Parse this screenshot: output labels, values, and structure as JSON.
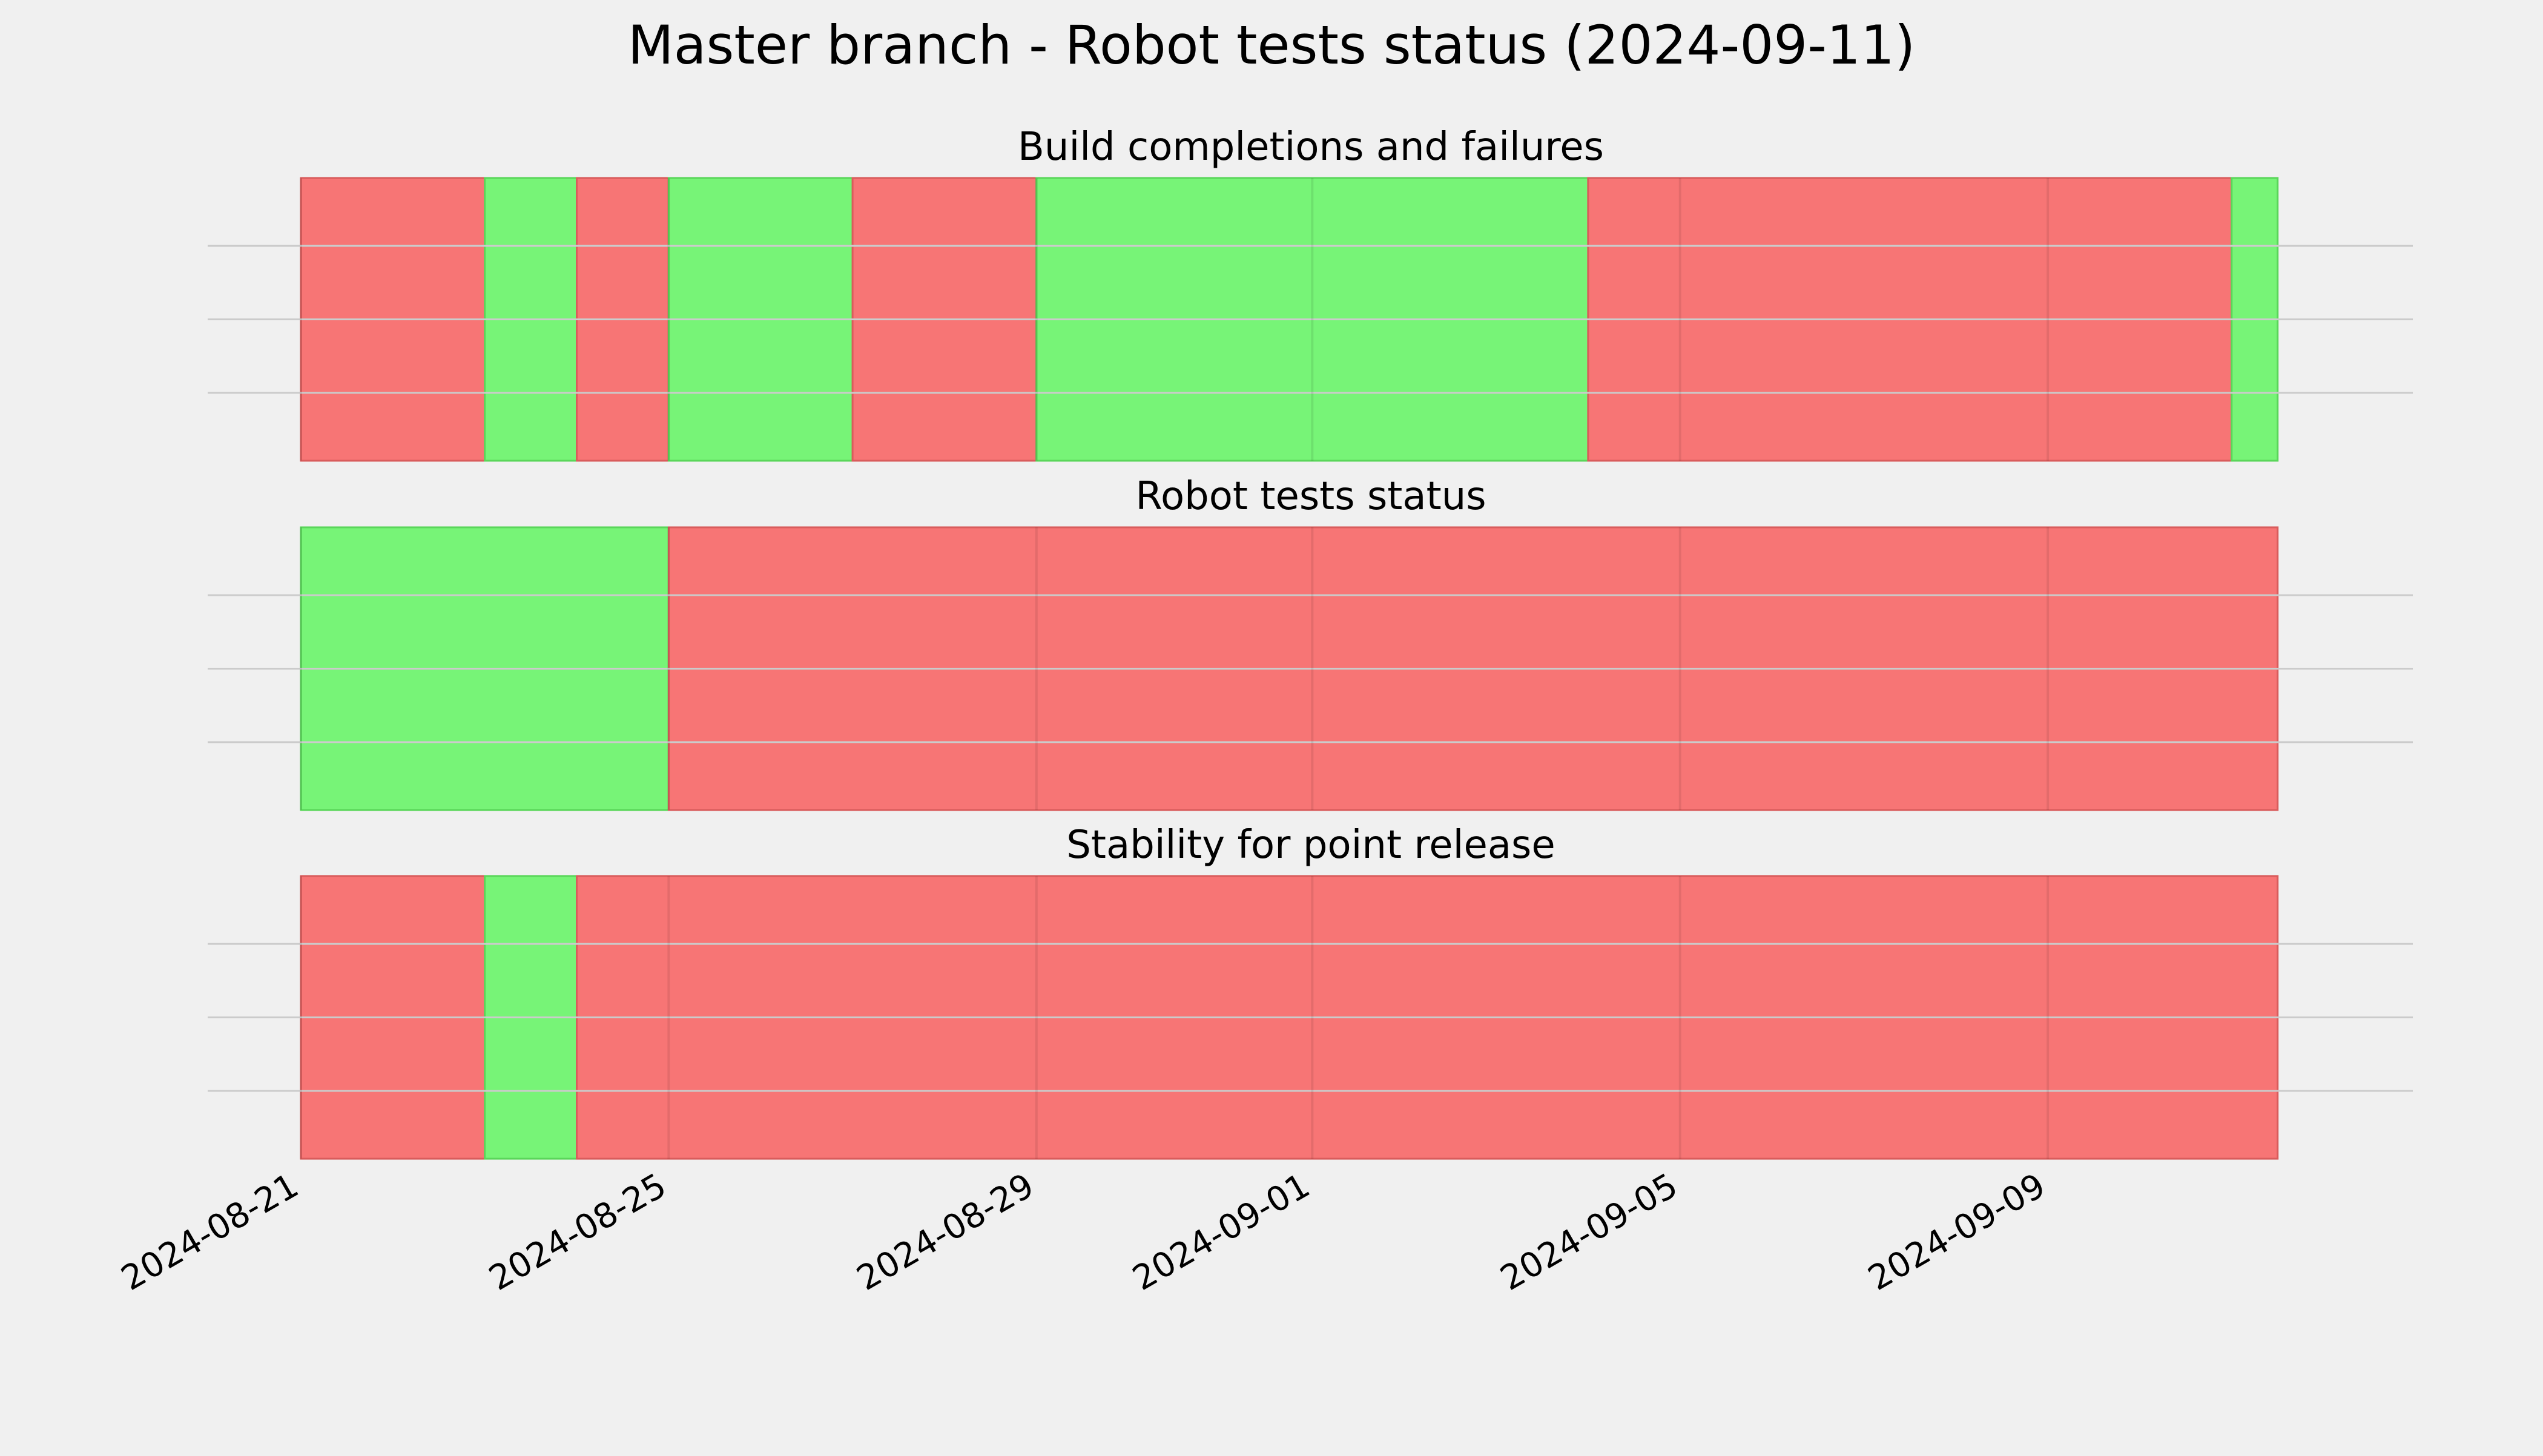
{
  "colors": {
    "background": "#f0f0f0",
    "pass": "#77f477",
    "fail": "#f77575",
    "gridline": "#cbcbcb"
  },
  "chart_data": {
    "type": "timeline",
    "title": "Master branch - Robot tests status (2024-09-11)",
    "x_axis": {
      "type": "date",
      "range": [
        "2024-08-21",
        "2024-09-11T22:00"
      ],
      "tick_labels": [
        "2024-08-21",
        "2024-08-25",
        "2024-08-29",
        "2024-09-01",
        "2024-09-05",
        "2024-09-09"
      ],
      "tick_rotation_deg": 30
    },
    "grid": true,
    "legend": "none",
    "panels": [
      {
        "title": "Build completions and failures",
        "segments": [
          {
            "start": "2024-08-21",
            "end": "2024-08-23",
            "status": "fail"
          },
          {
            "start": "2024-08-23",
            "end": "2024-08-24",
            "status": "pass"
          },
          {
            "start": "2024-08-24",
            "end": "2024-08-25",
            "status": "fail"
          },
          {
            "start": "2024-08-25",
            "end": "2024-08-27",
            "status": "pass"
          },
          {
            "start": "2024-08-27",
            "end": "2024-08-29",
            "status": "fail"
          },
          {
            "start": "2024-08-29",
            "end": "2024-09-04",
            "status": "pass"
          },
          {
            "start": "2024-09-04",
            "end": "2024-09-11",
            "status": "fail"
          },
          {
            "start": "2024-09-11",
            "end": "2024-09-11T12:00",
            "status": "pass"
          }
        ]
      },
      {
        "title": "Robot tests status",
        "segments": [
          {
            "start": "2024-08-21",
            "end": "2024-08-25",
            "status": "pass"
          },
          {
            "start": "2024-08-25",
            "end": "2024-09-11T12:00",
            "status": "fail"
          }
        ]
      },
      {
        "title": "Stability for point release",
        "segments": [
          {
            "start": "2024-08-21",
            "end": "2024-08-23",
            "status": "fail"
          },
          {
            "start": "2024-08-23",
            "end": "2024-08-24",
            "status": "pass"
          },
          {
            "start": "2024-08-24",
            "end": "2024-09-11T12:00",
            "status": "fail"
          }
        ]
      }
    ]
  }
}
